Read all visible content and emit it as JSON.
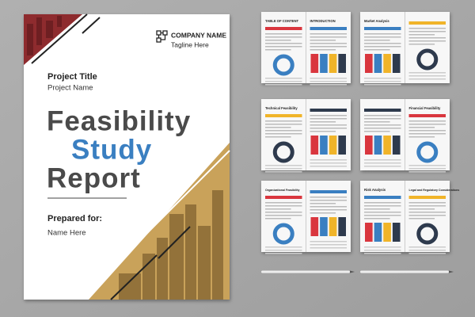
{
  "cover": {
    "company_name": "COMPANY NAME",
    "tagline": "Tagline Here",
    "project_title": "Project Title",
    "project_name": "Project Name",
    "title_lines": [
      "Feasibility",
      "Study",
      "Report"
    ],
    "prepared_for": "Prepared for:",
    "name": "Name Here"
  },
  "spreads": [
    {
      "left": "TABLE OF CONTENT",
      "right": "INTRODUCTION"
    },
    {
      "left": "Market Analysis"
    },
    {
      "left": "Technical Feasibility"
    },
    {
      "right": "Financial Feasibility"
    },
    {
      "left": "Organizational Feasibility"
    },
    {
      "left": "Risk Analysis",
      "right": "Legal and Regulatory Considerations"
    }
  ]
}
